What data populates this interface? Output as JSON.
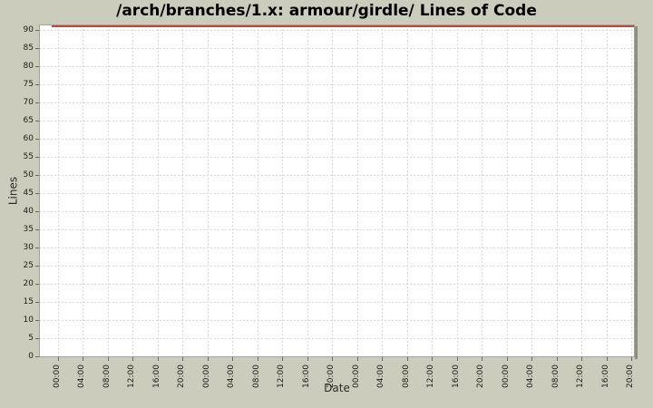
{
  "colors": {
    "background": "#ccccbc",
    "plot_background": "#ffffff",
    "plot_border": "#a3a296",
    "grid": "#d9d9d9",
    "series_red": "#c2443c",
    "tick": "#68685f",
    "text": "#1c1c1c"
  },
  "chart_data": {
    "type": "line",
    "title": "/arch/branches/1.x: armour/girdle/ Lines of Code",
    "xlabel": "Date",
    "ylabel": "Lines",
    "ylim": [
      0,
      91.5
    ],
    "ytick_step": 5,
    "grid": true,
    "legend": "none",
    "yticks": [
      0,
      5,
      10,
      15,
      20,
      25,
      30,
      35,
      40,
      45,
      50,
      55,
      60,
      65,
      70,
      75,
      80,
      85,
      90
    ],
    "xticks": [
      "00:00",
      "04:00",
      "08:00",
      "12:00",
      "16:00",
      "20:00",
      "00:00",
      "04:00",
      "08:00",
      "12:00",
      "16:00",
      "20:00",
      "00:00",
      "04:00",
      "08:00",
      "12:00",
      "16:00",
      "20:00",
      "00:00",
      "04:00",
      "08:00",
      "12:00",
      "16:00",
      "20:00"
    ],
    "series": [
      {
        "name": "lines_of_code",
        "color": "#c2443c",
        "style": "solid",
        "note": "constant horizontal line clipped at the very top edge of the plot, above the 90 gridline",
        "approx_constant_value": 91.5,
        "values": [
          91.5,
          91.5,
          91.5,
          91.5,
          91.5,
          91.5,
          91.5,
          91.5,
          91.5,
          91.5,
          91.5,
          91.5,
          91.5,
          91.5,
          91.5,
          91.5,
          91.5,
          91.5,
          91.5,
          91.5,
          91.5,
          91.5,
          91.5,
          91.5
        ]
      }
    ]
  }
}
